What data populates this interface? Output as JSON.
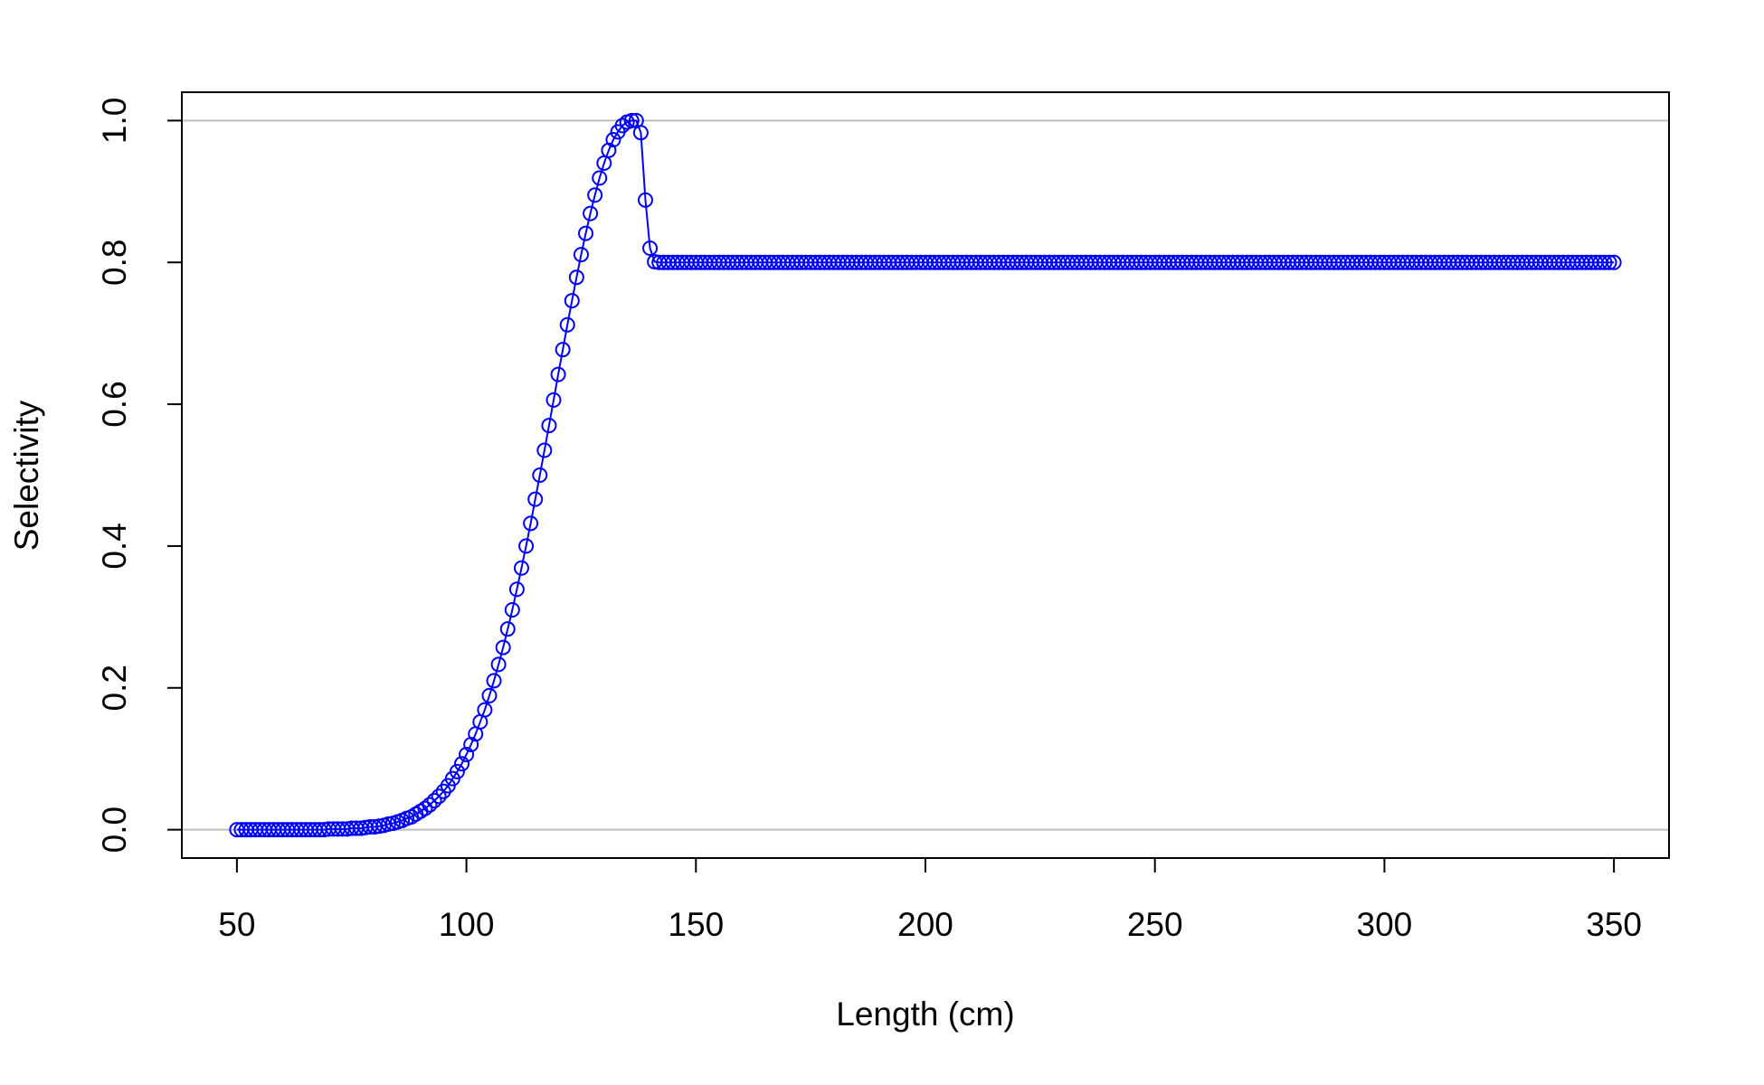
{
  "chart_data": {
    "type": "line",
    "xlabel": "Length (cm)",
    "ylabel": "Selectivity",
    "x": [
      50,
      51,
      52,
      53,
      54,
      55,
      56,
      57,
      58,
      59,
      60,
      61,
      62,
      63,
      64,
      65,
      66,
      67,
      68,
      69,
      70,
      71,
      72,
      73,
      74,
      75,
      76,
      77,
      78,
      79,
      80,
      81,
      82,
      83,
      84,
      85,
      86,
      87,
      88,
      89,
      90,
      91,
      92,
      93,
      94,
      95,
      96,
      97,
      98,
      99,
      100,
      101,
      102,
      103,
      104,
      105,
      106,
      107,
      108,
      109,
      110,
      111,
      112,
      113,
      114,
      115,
      116,
      117,
      118,
      119,
      120,
      121,
      122,
      123,
      124,
      125,
      126,
      127,
      128,
      129,
      130,
      131,
      132,
      133,
      134,
      135,
      136,
      137,
      138,
      139,
      140,
      141,
      142,
      143,
      144,
      145,
      146,
      147,
      148,
      149,
      150,
      151,
      152,
      153,
      154,
      155,
      156,
      157,
      158,
      159,
      160,
      161,
      162,
      163,
      164,
      165,
      166,
      167,
      168,
      169,
      170,
      171,
      172,
      173,
      174,
      175,
      176,
      177,
      178,
      179,
      180,
      181,
      182,
      183,
      184,
      185,
      186,
      187,
      188,
      189,
      190,
      191,
      192,
      193,
      194,
      195,
      196,
      197,
      198,
      199,
      200,
      201,
      202,
      203,
      204,
      205,
      206,
      207,
      208,
      209,
      210,
      211,
      212,
      213,
      214,
      215,
      216,
      217,
      218,
      219,
      220,
      221,
      222,
      223,
      224,
      225,
      226,
      227,
      228,
      229,
      230,
      231,
      232,
      233,
      234,
      235,
      236,
      237,
      238,
      239,
      240,
      241,
      242,
      243,
      244,
      245,
      246,
      247,
      248,
      249,
      250,
      251,
      252,
      253,
      254,
      255,
      256,
      257,
      258,
      259,
      260,
      261,
      262,
      263,
      264,
      265,
      266,
      267,
      268,
      269,
      270,
      271,
      272,
      273,
      274,
      275,
      276,
      277,
      278,
      279,
      280,
      281,
      282,
      283,
      284,
      285,
      286,
      287,
      288,
      289,
      290,
      291,
      292,
      293,
      294,
      295,
      296,
      297,
      298,
      299,
      300,
      301,
      302,
      303,
      304,
      305,
      306,
      307,
      308,
      309,
      310,
      311,
      312,
      313,
      314,
      315,
      316,
      317,
      318,
      319,
      320,
      321,
      322,
      323,
      324,
      325,
      326,
      327,
      328,
      329,
      330,
      331,
      332,
      333,
      334,
      335,
      336,
      337,
      338,
      339,
      340,
      341,
      342,
      343,
      344,
      345,
      346,
      347,
      348,
      349,
      350
    ],
    "series": [
      {
        "color": "#0000ff",
        "values": [
          0,
          0,
          0,
          0,
          0,
          0,
          0,
          0,
          0,
          0,
          0,
          0,
          0,
          0,
          0,
          0,
          0,
          0,
          0,
          0,
          0.001,
          0.001,
          0.001,
          0.001,
          0.001,
          0.002,
          0.002,
          0.002,
          0.003,
          0.004,
          0.004,
          0.005,
          0.006,
          0.008,
          0.009,
          0.011,
          0.013,
          0.016,
          0.018,
          0.022,
          0.026,
          0.03,
          0.035,
          0.041,
          0.047,
          0.054,
          0.062,
          0.072,
          0.082,
          0.093,
          0.106,
          0.12,
          0.135,
          0.152,
          0.169,
          0.189,
          0.21,
          0.233,
          0.257,
          0.283,
          0.31,
          0.339,
          0.369,
          0.4,
          0.432,
          0.466,
          0.5,
          0.535,
          0.57,
          0.606,
          0.642,
          0.677,
          0.712,
          0.746,
          0.779,
          0.811,
          0.841,
          0.869,
          0.895,
          0.919,
          0.94,
          0.958,
          0.973,
          0.984,
          0.993,
          0.998,
          1,
          1,
          0.983,
          0.888,
          0.82,
          0.801,
          0.8,
          0.8,
          0.8,
          0.8,
          0.8,
          0.8,
          0.8,
          0.8,
          0.8,
          0.8,
          0.8,
          0.8,
          0.8,
          0.8,
          0.8,
          0.8,
          0.8,
          0.8,
          0.8,
          0.8,
          0.8,
          0.8,
          0.8,
          0.8,
          0.8,
          0.8,
          0.8,
          0.8,
          0.8,
          0.8,
          0.8,
          0.8,
          0.8,
          0.8,
          0.8,
          0.8,
          0.8,
          0.8,
          0.8,
          0.8,
          0.8,
          0.8,
          0.8,
          0.8,
          0.8,
          0.8,
          0.8,
          0.8,
          0.8,
          0.8,
          0.8,
          0.8,
          0.8,
          0.8,
          0.8,
          0.8,
          0.8,
          0.8,
          0.8,
          0.8,
          0.8,
          0.8,
          0.8,
          0.8,
          0.8,
          0.8,
          0.8,
          0.8,
          0.8,
          0.8,
          0.8,
          0.8,
          0.8,
          0.8,
          0.8,
          0.8,
          0.8,
          0.8,
          0.8,
          0.8,
          0.8,
          0.8,
          0.8,
          0.8,
          0.8,
          0.8,
          0.8,
          0.8,
          0.8,
          0.8,
          0.8,
          0.8,
          0.8,
          0.8,
          0.8,
          0.8,
          0.8,
          0.8,
          0.8,
          0.8,
          0.8,
          0.8,
          0.8,
          0.8,
          0.8,
          0.8,
          0.8,
          0.8,
          0.8,
          0.8,
          0.8,
          0.8,
          0.8,
          0.8,
          0.8,
          0.8,
          0.8,
          0.8,
          0.8,
          0.8,
          0.8,
          0.8,
          0.8,
          0.8,
          0.8,
          0.8,
          0.8,
          0.8,
          0.8,
          0.8,
          0.8,
          0.8,
          0.8,
          0.8,
          0.8,
          0.8,
          0.8,
          0.8,
          0.8,
          0.8,
          0.8,
          0.8,
          0.8,
          0.8,
          0.8,
          0.8,
          0.8,
          0.8,
          0.8,
          0.8,
          0.8,
          0.8,
          0.8,
          0.8,
          0.8,
          0.8,
          0.8,
          0.8,
          0.8,
          0.8,
          0.8,
          0.8,
          0.8,
          0.8,
          0.8,
          0.8,
          0.8,
          0.8,
          0.8,
          0.8,
          0.8,
          0.8,
          0.8,
          0.8,
          0.8,
          0.8,
          0.8,
          0.8,
          0.8,
          0.8,
          0.8,
          0.8,
          0.8,
          0.8,
          0.8,
          0.8,
          0.8,
          0.8,
          0.8,
          0.8,
          0.8,
          0.8,
          0.8,
          0.8,
          0.8,
          0.8,
          0.8,
          0.8,
          0.8,
          0.8,
          0.8,
          0.8,
          0.8,
          0.8,
          0.8,
          0.8,
          0.8,
          0.8,
          0.8
        ]
      }
    ],
    "reference_lines": [
      0,
      1
    ],
    "reference_color": "#bebebe",
    "xlim": [
      38,
      362
    ],
    "ylim": [
      -0.04,
      1.04
    ],
    "xticks": [
      50,
      100,
      150,
      200,
      250,
      300,
      350
    ],
    "yticks": [
      {
        "value": 0,
        "label": "0.0"
      },
      {
        "value": 0.2,
        "label": "0.2"
      },
      {
        "value": 0.4,
        "label": "0.4"
      },
      {
        "value": 0.6,
        "label": "0.6"
      },
      {
        "value": 0.8,
        "label": "0.8"
      },
      {
        "value": 1,
        "label": "1.0"
      }
    ]
  }
}
